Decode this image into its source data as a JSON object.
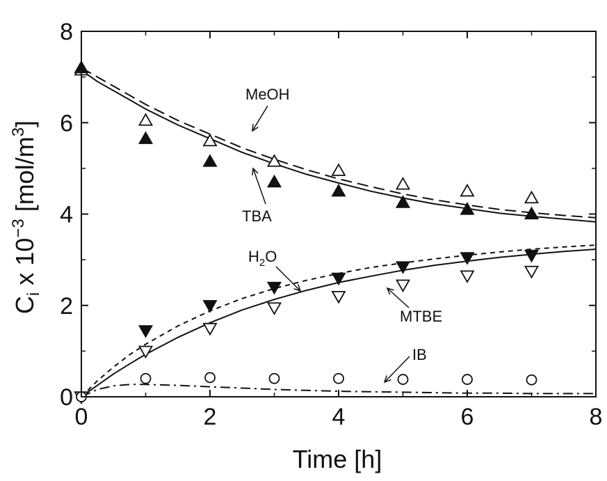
{
  "chart_data": {
    "type": "scatter",
    "title": "",
    "xlabel": "Time [h]",
    "ylabel_parts": {
      "main": "C",
      "sub": "i",
      "mid": " x 10",
      "sup": "−3",
      "unit_pre": " [mol/m",
      "unit_sup": "3",
      "unit_post": "]"
    },
    "xlim": [
      0,
      8
    ],
    "ylim": [
      0,
      8
    ],
    "xticks": [
      0,
      2,
      4,
      6,
      8
    ],
    "yticks": [
      0,
      2,
      4,
      6,
      8
    ],
    "xtick_labels": [
      "0",
      "2",
      "4",
      "6",
      "8"
    ],
    "ytick_labels": [
      "0",
      "2",
      "4",
      "6",
      "8"
    ],
    "grid": false,
    "series": [
      {
        "name": "MeOH",
        "marker": "triangle-up-open",
        "x": [
          0,
          1,
          2,
          3,
          4,
          5,
          6,
          7
        ],
        "y": [
          7.15,
          6.05,
          5.6,
          5.15,
          4.95,
          4.65,
          4.5,
          4.35
        ]
      },
      {
        "name": "TBA",
        "marker": "triangle-up-filled",
        "x": [
          0,
          1,
          2,
          3,
          4,
          5,
          6,
          7
        ],
        "y": [
          7.2,
          5.65,
          5.15,
          4.7,
          4.5,
          4.25,
          4.1,
          4.0
        ]
      },
      {
        "name": "H2O",
        "marker": "triangle-down-filled",
        "x": [
          0,
          1,
          2,
          3,
          4,
          5,
          6,
          7
        ],
        "y": [
          0,
          1.45,
          2.0,
          2.4,
          2.6,
          2.85,
          3.05,
          3.1
        ]
      },
      {
        "name": "MTBE",
        "marker": "triangle-down-open",
        "x": [
          0,
          1,
          2,
          3,
          4,
          5,
          6,
          7
        ],
        "y": [
          0,
          1.0,
          1.5,
          1.95,
          2.2,
          2.45,
          2.65,
          2.75
        ]
      },
      {
        "name": "IB",
        "marker": "circle-open",
        "x": [
          0,
          1,
          2,
          3,
          4,
          5,
          6,
          7
        ],
        "y": [
          0,
          0.4,
          0.42,
          0.4,
          0.4,
          0.38,
          0.38,
          0.37
        ]
      }
    ],
    "model_curves": [
      {
        "label": "MeOH",
        "style": "dashed",
        "x": [
          0,
          0.25,
          0.5,
          0.75,
          1,
          1.5,
          2,
          2.5,
          3,
          3.5,
          4,
          4.5,
          5,
          5.5,
          6,
          6.5,
          7,
          7.5,
          8
        ],
        "y": [
          7.2,
          7.0,
          6.8,
          6.6,
          6.4,
          6.05,
          5.75,
          5.45,
          5.2,
          4.97,
          4.77,
          4.6,
          4.44,
          4.31,
          4.2,
          4.1,
          4.03,
          3.97,
          3.92
        ]
      },
      {
        "label": "TBA",
        "style": "solid",
        "x": [
          0,
          0.25,
          0.5,
          0.75,
          1,
          1.5,
          2,
          2.5,
          3,
          3.5,
          4,
          4.5,
          5,
          5.5,
          6,
          6.5,
          7,
          7.5,
          8
        ],
        "y": [
          7.15,
          6.9,
          6.7,
          6.5,
          6.3,
          5.95,
          5.65,
          5.35,
          5.1,
          4.87,
          4.68,
          4.5,
          4.35,
          4.22,
          4.12,
          4.02,
          3.95,
          3.89,
          3.83
        ]
      },
      {
        "label": "H2O",
        "style": "short-dashed",
        "x": [
          0,
          0.25,
          0.5,
          0.75,
          1,
          1.5,
          2,
          2.5,
          3,
          3.5,
          4,
          4.5,
          5,
          5.5,
          6,
          6.5,
          7,
          7.5,
          8
        ],
        "y": [
          0,
          0.35,
          0.65,
          0.92,
          1.15,
          1.55,
          1.88,
          2.15,
          2.37,
          2.55,
          2.7,
          2.83,
          2.93,
          3.02,
          3.1,
          3.17,
          3.23,
          3.28,
          3.32
        ]
      },
      {
        "label": "MTBE",
        "style": "solid",
        "x": [
          0,
          0.25,
          0.5,
          0.75,
          1,
          1.5,
          2,
          2.5,
          3,
          3.5,
          4,
          4.5,
          5,
          5.5,
          6,
          6.5,
          7,
          7.5,
          8
        ],
        "y": [
          0,
          0.25,
          0.5,
          0.72,
          0.93,
          1.3,
          1.62,
          1.9,
          2.13,
          2.33,
          2.5,
          2.64,
          2.77,
          2.88,
          2.97,
          3.05,
          3.12,
          3.18,
          3.23
        ]
      },
      {
        "label": "IB",
        "style": "dash-dot",
        "x": [
          0,
          0.25,
          0.5,
          0.75,
          1,
          1.5,
          2,
          2.5,
          3,
          3.5,
          4,
          4.5,
          5,
          5.5,
          6,
          6.5,
          7,
          7.5,
          8
        ],
        "y": [
          0,
          0.16,
          0.24,
          0.27,
          0.27,
          0.25,
          0.22,
          0.19,
          0.16,
          0.14,
          0.12,
          0.11,
          0.1,
          0.09,
          0.08,
          0.08,
          0.07,
          0.07,
          0.07
        ]
      }
    ],
    "annotations": [
      {
        "text": "MeOH",
        "anchor_data": [
          2.7,
          4.5
        ]
      },
      {
        "text": "TBA",
        "anchor_data": [
          2.65,
          5.05
        ]
      },
      {
        "text_main": "H",
        "text_sub": "2",
        "text_post": "O",
        "anchor_data": [
          3.4,
          2.3
        ]
      },
      {
        "text": "MTBE",
        "anchor_data": [
          4.55,
          2.35
        ]
      },
      {
        "text": "IB",
        "anchor_data": [
          4.7,
          0.3
        ]
      }
    ]
  }
}
